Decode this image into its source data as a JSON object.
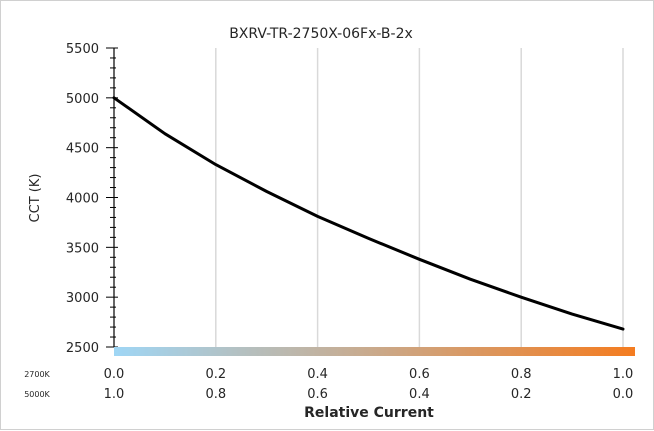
{
  "chart_data": {
    "type": "line",
    "title": "BXRV-TR-2750X-06Fx-B-2x",
    "xlabel": "Relative Current",
    "ylabel": "CCT (K)",
    "ylim": [
      2500,
      5500
    ],
    "xlim": [
      0.0,
      1.0
    ],
    "y_ticks": [
      "5500",
      "5000",
      "4500",
      "4000",
      "3500",
      "3000",
      "2500"
    ],
    "x_tick_rows": [
      {
        "label": "2700K",
        "ticks": [
          "0.0",
          "0.2",
          "0.4",
          "0.6",
          "0.8",
          "1.0"
        ]
      },
      {
        "label": "5000K",
        "ticks": [
          "1.0",
          "0.8",
          "0.6",
          "0.4",
          "0.2",
          "0.0"
        ]
      }
    ],
    "gradient_colors": [
      "#9fd6f5",
      "#f47c20"
    ],
    "grid": true,
    "series": [
      {
        "color": "#000000",
        "x": [
          0.0,
          0.1,
          0.2,
          0.3,
          0.4,
          0.5,
          0.6,
          0.7,
          0.8,
          0.9,
          1.0
        ],
        "y": [
          5000,
          4640,
          4330,
          4060,
          3810,
          3590,
          3380,
          3180,
          3000,
          2830,
          2680
        ]
      }
    ]
  }
}
